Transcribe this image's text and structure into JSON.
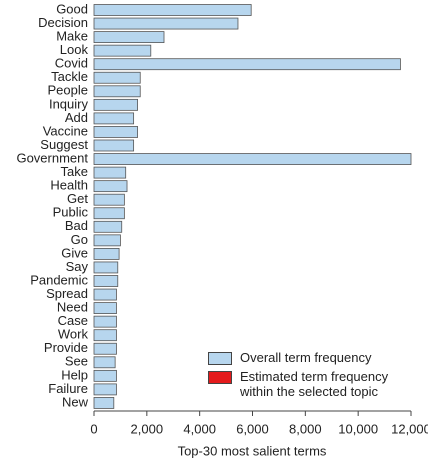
{
  "chart_data": {
    "type": "barh",
    "xlabel": "Top-30 most salient terms",
    "categories": [
      "Good",
      "Decision",
      "Make",
      "Look",
      "Covid",
      "Tackle",
      "People",
      "Inquiry",
      "Add",
      "Vaccine",
      "Suggest",
      "Government",
      "Take",
      "Health",
      "Get",
      "Public",
      "Bad",
      "Go",
      "Give",
      "Say",
      "Pandemic",
      "Spread",
      "Need",
      "Case",
      "Work",
      "Provide",
      "See",
      "Help",
      "Failure",
      "New"
    ],
    "series": [
      {
        "name": "Overall term frequency",
        "color": "#b7d6ee",
        "values": [
          5950,
          5450,
          2650,
          2150,
          11600,
          1750,
          1750,
          1650,
          1500,
          1650,
          1500,
          12000,
          1200,
          1250,
          1150,
          1150,
          1050,
          1000,
          950,
          900,
          900,
          850,
          850,
          850,
          850,
          850,
          800,
          850,
          850,
          750
        ]
      },
      {
        "name": "Estimated term frequency within the selected topic",
        "color": "#e41a1c",
        "values": [
          0,
          0,
          0,
          0,
          0,
          0,
          0,
          0,
          0,
          0,
          0,
          0,
          0,
          0,
          0,
          0,
          0,
          0,
          0,
          0,
          0,
          0,
          0,
          0,
          0,
          0,
          0,
          0,
          0,
          0
        ]
      }
    ],
    "xlim": [
      0,
      12000
    ],
    "xticks": [
      0,
      {
        "value": 2000,
        "label": "2,000"
      },
      {
        "value": 4000,
        "label": "4,000"
      },
      {
        "value": 6000,
        "label": "6,000"
      },
      {
        "value": 8000,
        "label": "8,000"
      },
      {
        "value": 10000,
        "label": "10,000"
      },
      {
        "value": 12000,
        "label": "12,000"
      }
    ]
  }
}
